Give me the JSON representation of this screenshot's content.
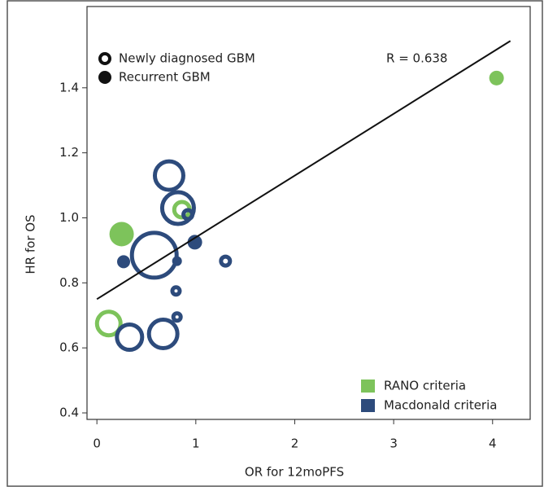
{
  "chart_data": {
    "type": "scatter",
    "annotation": "R = 0.638",
    "x_label": "OR for 12moPFS",
    "y_label": "HR for OS",
    "xlim": [
      -0.1,
      4.38
    ],
    "ylim": [
      0.38,
      1.65
    ],
    "xticks": [
      0,
      1,
      2,
      3,
      4
    ],
    "yticks": [
      0.4,
      0.6,
      0.8,
      {
        "value": 1,
        "label": "1.0"
      },
      1.2,
      1.4
    ],
    "regression": {
      "intercept": 0.75,
      "slope": 0.19
    },
    "marker_legend": [
      {
        "name": "Newly diagnosed GBM",
        "filled": false
      },
      {
        "name": "Recurrent GBM",
        "filled": true
      }
    ],
    "series": [
      {
        "name": "RANO criteria",
        "color": "#7dc35b",
        "x": [
          4.04,
          0.86,
          0.25,
          0.12
        ],
        "values": [
          1.43,
          1.025,
          0.95,
          0.675
        ],
        "sizes": [
          9,
          12,
          15,
          17
        ],
        "filled": [
          true,
          false,
          true,
          false
        ]
      },
      {
        "name": "Macdonald criteria",
        "color": "#2d4b7c",
        "x": [
          0.73,
          0.82,
          0.92,
          0.99,
          0.58,
          0.27,
          0.81,
          1.3,
          0.8,
          0.81,
          0.33,
          0.67
        ],
        "values": [
          1.13,
          1.03,
          1.01,
          0.925,
          0.885,
          0.865,
          0.867,
          0.867,
          0.775,
          0.695,
          0.633,
          0.643
        ],
        "sizes": [
          20,
          22,
          8,
          9,
          30,
          8,
          6,
          8,
          7,
          7,
          18,
          20
        ],
        "filled": [
          false,
          false,
          false,
          true,
          false,
          true,
          true,
          false,
          false,
          false,
          false,
          false
        ]
      }
    ]
  }
}
